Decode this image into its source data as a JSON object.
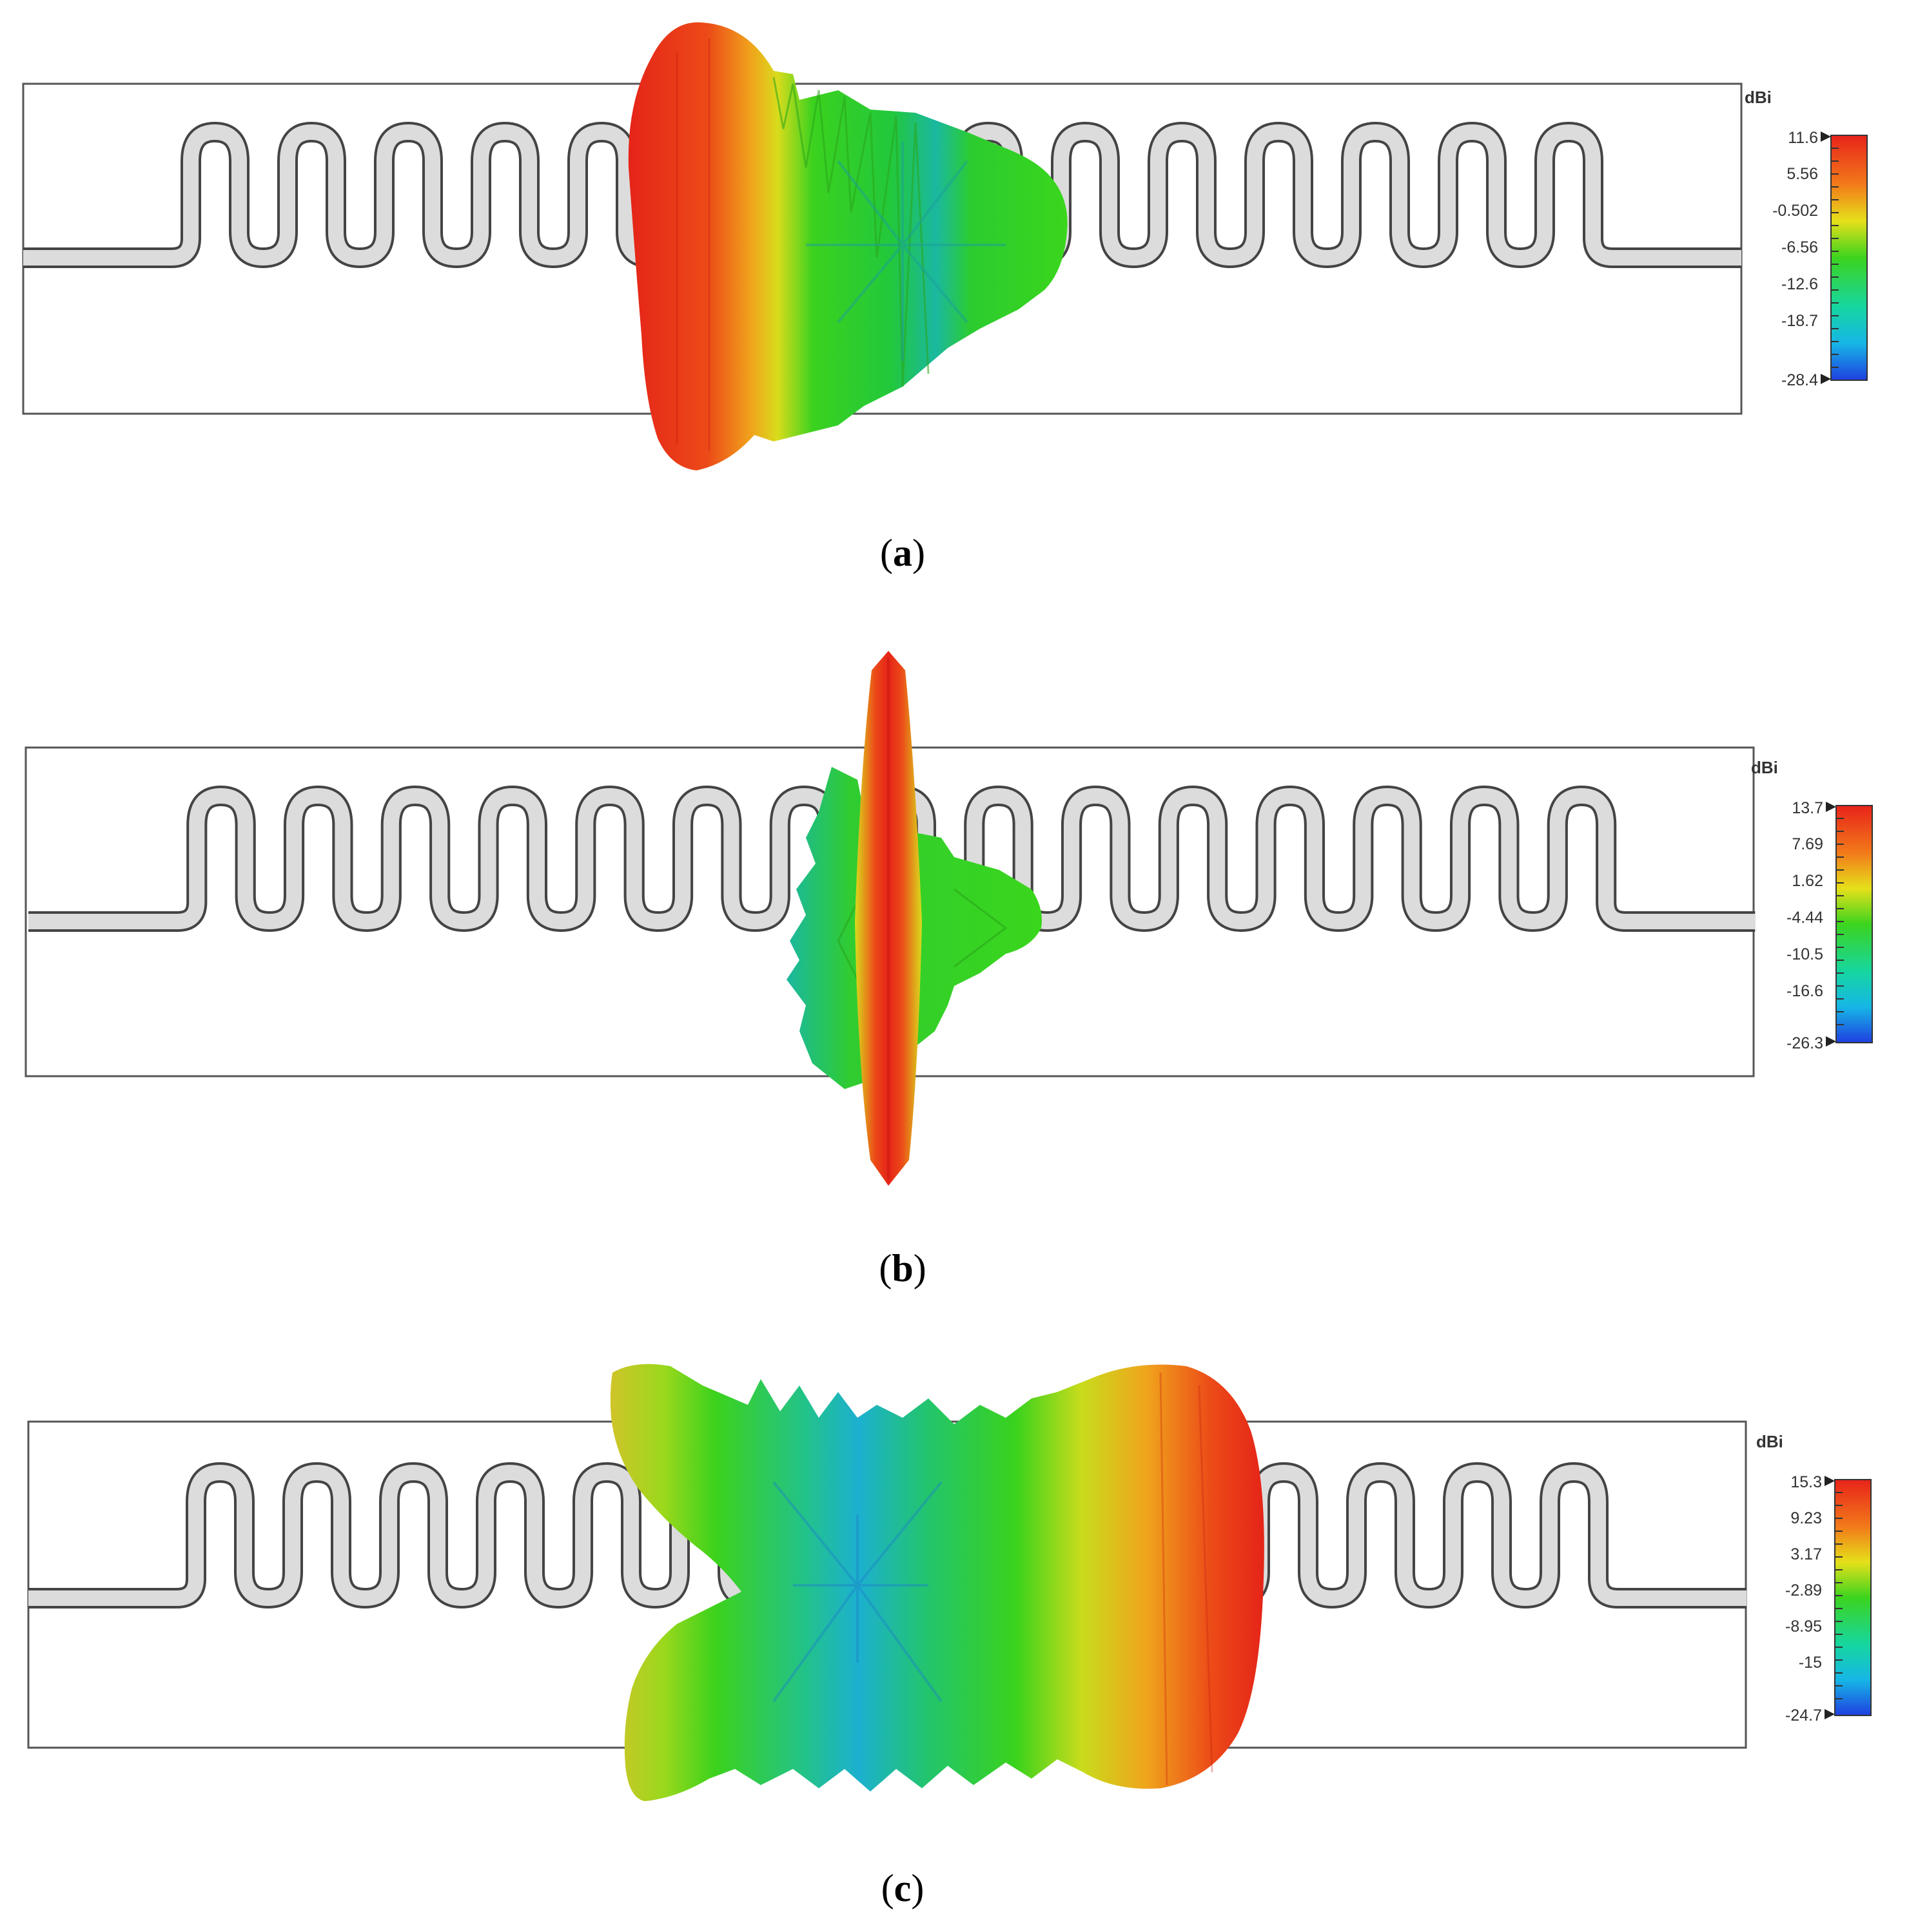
{
  "panels": [
    {
      "id": "a",
      "caption": "a",
      "unit": "dBi",
      "ticks": [
        "11.6",
        "5.56",
        "-0.502",
        "-6.56",
        "-12.6",
        "-18.7",
        "-28.4"
      ],
      "colors": {
        "high": "#e8231a",
        "low": "#1f3fe0"
      }
    },
    {
      "id": "b",
      "caption": "b",
      "unit": "dBi",
      "ticks": [
        "13.7",
        "7.69",
        "1.62",
        "-4.44",
        "-10.5",
        "-16.6",
        "-26.3"
      ],
      "colors": {
        "high": "#e8231a",
        "low": "#1f3fe0"
      }
    },
    {
      "id": "c",
      "caption": "c",
      "unit": "dBi",
      "ticks": [
        "15.3",
        "9.23",
        "3.17",
        "-2.89",
        "-8.95",
        "-15",
        "-24.7"
      ],
      "colors": {
        "high": "#e8231a",
        "low": "#1f3fe0"
      }
    }
  ]
}
